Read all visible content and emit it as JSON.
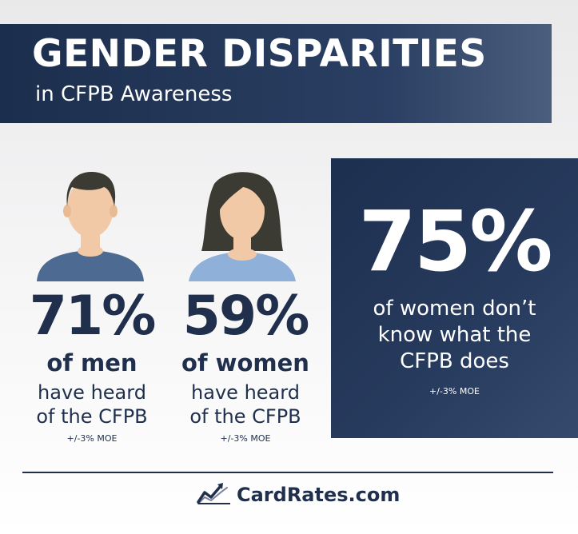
{
  "header": {
    "title": "GENDER DISPARITIES",
    "subtitle": "in CFPB Awareness"
  },
  "men": {
    "percent": "71%",
    "who": "of men",
    "line1": "have heard",
    "line2": "of the CFPB",
    "moe": "+/-3% MOE"
  },
  "women": {
    "percent": "59%",
    "who": "of women",
    "line1": "have heard",
    "line2": "of the CFPB",
    "moe": "+/-3% MOE"
  },
  "highlight": {
    "percent": "75%",
    "line1": "of women don’t",
    "line2": "know what the",
    "line3": "CFPB does",
    "moe": "+/-3% MOE"
  },
  "footer": {
    "brand": "CardRates.com",
    "logo_icon": "chart-trend-icon"
  },
  "colors": {
    "navy": "#1f2f4c",
    "man_shirt": "#4d6a92",
    "woman_shirt": "#8fb0d8",
    "skin": "#f1c9a6",
    "hair": "#3b3b33"
  }
}
